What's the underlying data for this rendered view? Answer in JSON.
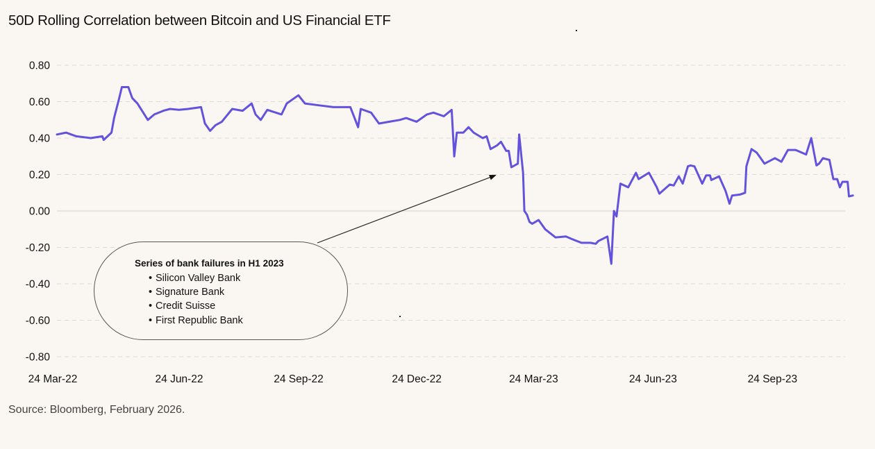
{
  "title": "50D Rolling Correlation between Bitcoin and US Financial ETF",
  "source": "Source: Bloomberg, February 2026.",
  "colors": {
    "series": "#6352dc",
    "grid": "#dedad6",
    "zero_line": "#dcd8d4",
    "text": "#111111",
    "background": "#faf6f2"
  },
  "callout": {
    "title": "Series of bank failures in H1 2023",
    "bullet": "•",
    "items": [
      "Silicon Valley Bank",
      "Signature Bank",
      "Credit Suisse",
      "First Republic Bank"
    ]
  },
  "chart_data": {
    "type": "line",
    "title": "50D Rolling Correlation between Bitcoin and US Financial ETF",
    "xlabel": "",
    "ylabel": "",
    "x_unit": "days since 24 Mar-22",
    "ylim": [
      -0.8,
      0.8
    ],
    "xlim": [
      0,
      613
    ],
    "yticks": [
      0.8,
      0.6,
      0.4,
      0.2,
      0.0,
      -0.2,
      -0.4,
      -0.6,
      -0.8
    ],
    "ytick_labels": [
      "0.80",
      "0.60",
      "0.40",
      "0.20",
      "0.00",
      "-0.20",
      "-0.40",
      "-0.60",
      "-0.80"
    ],
    "xticks": [
      0,
      92,
      184,
      275,
      365,
      457,
      549
    ],
    "xtick_labels": [
      "24 Mar-22",
      "24 Jun-22",
      "24 Sep-22",
      "24 Dec-22",
      "24 Mar-23",
      "24 Jun-23",
      "24 Sep-23"
    ],
    "grid": "horizontal-dashed",
    "legend": "none",
    "annotation": {
      "text": "Series of bank failures in H1 2023",
      "arrow_to": [
        339,
        0.2
      ]
    },
    "series": [
      {
        "name": "50D Rolling Correlation",
        "x": [
          0,
          7,
          15,
          26,
          35,
          36,
          42,
          44,
          48,
          50,
          55,
          58,
          62,
          70,
          75,
          82,
          87,
          94,
          101,
          111,
          114,
          118,
          122,
          127,
          135,
          143,
          150,
          153,
          157,
          162,
          173,
          177,
          186,
          191,
          202,
          213,
          226,
          232,
          234,
          242,
          248,
          256,
          264,
          269,
          277,
          285,
          290,
          298,
          304,
          306,
          308,
          313,
          317,
          321,
          328,
          331,
          334,
          339,
          342,
          346,
          348,
          350,
          355,
          356,
          359,
          360,
          362,
          364,
          366,
          371,
          376,
          384,
          392,
          397,
          404,
          411,
          415,
          417,
          424,
          427,
          429,
          431,
          434,
          440,
          446,
          448,
          456,
          462,
          464,
          472,
          475,
          479,
          482,
          486,
          488,
          491,
          497,
          500,
          503,
          504,
          510,
          515,
          518,
          520,
          526,
          530,
          531,
          535,
          539,
          545,
          553,
          558,
          563,
          569,
          577,
          581,
          585,
          587,
          590,
          595,
          598,
          601,
          603,
          605,
          609,
          610,
          613
        ],
        "values": [
          0.42,
          0.43,
          0.41,
          0.4,
          0.41,
          0.39,
          0.43,
          0.51,
          0.62,
          0.68,
          0.68,
          0.62,
          0.59,
          0.5,
          0.53,
          0.55,
          0.56,
          0.555,
          0.56,
          0.57,
          0.48,
          0.44,
          0.47,
          0.49,
          0.56,
          0.55,
          0.59,
          0.53,
          0.5,
          0.555,
          0.53,
          0.59,
          0.635,
          0.59,
          0.58,
          0.57,
          0.57,
          0.46,
          0.56,
          0.54,
          0.48,
          0.49,
          0.5,
          0.51,
          0.49,
          0.53,
          0.54,
          0.52,
          0.555,
          0.3,
          0.43,
          0.43,
          0.46,
          0.43,
          0.4,
          0.41,
          0.34,
          0.36,
          0.38,
          0.33,
          0.33,
          0.24,
          0.26,
          0.42,
          0.21,
          0.0,
          -0.02,
          -0.06,
          -0.07,
          -0.05,
          -0.1,
          -0.145,
          -0.14,
          -0.155,
          -0.175,
          -0.175,
          -0.18,
          -0.165,
          -0.14,
          -0.29,
          0.0,
          -0.03,
          0.15,
          0.13,
          0.21,
          0.175,
          0.21,
          0.13,
          0.095,
          0.145,
          0.14,
          0.19,
          0.15,
          0.245,
          0.25,
          0.245,
          0.15,
          0.195,
          0.195,
          0.17,
          0.19,
          0.11,
          0.04,
          0.085,
          0.09,
          0.1,
          0.245,
          0.34,
          0.32,
          0.26,
          0.29,
          0.27,
          0.335,
          0.335,
          0.31,
          0.4,
          0.25,
          0.26,
          0.29,
          0.28,
          0.175,
          0.175,
          0.13,
          0.16,
          0.16,
          0.08,
          0.085
        ]
      }
    ]
  }
}
